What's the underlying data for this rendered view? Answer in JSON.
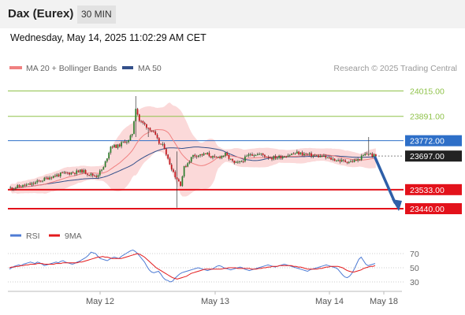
{
  "header": {
    "instrument": "Dax (Eurex)",
    "timeframe": "30 MIN",
    "datetime": "Wednesday, May 14, 2025 11:02:29 AM CET"
  },
  "legend": {
    "ma20": "MA 20 + Bollinger Bands",
    "ma50": "MA 50",
    "credit": "Research © 2025 Trading Central"
  },
  "chart_data": {
    "type": "candlestick",
    "ylim": [
      23390,
      24090
    ],
    "yticks": [
      24015,
      23891,
      23772,
      23697,
      23533,
      23440
    ],
    "levels": [
      {
        "value": 24015,
        "label": "24015.00",
        "color": "#8fc24a",
        "kind": "resistance"
      },
      {
        "value": 23891,
        "label": "23891.00",
        "color": "#8fc24a",
        "kind": "resistance"
      },
      {
        "value": 23772,
        "label": "23772.00",
        "color": "#2e6fc8",
        "kind": "pivot"
      },
      {
        "value": 23697,
        "label": "23697.00",
        "color": "#222222",
        "kind": "last price"
      },
      {
        "value": 23533,
        "label": "23533.00",
        "color": "#e3121b",
        "kind": "support"
      },
      {
        "value": 23440,
        "label": "23440.00",
        "color": "#e3121b",
        "kind": "support"
      }
    ],
    "xlabels": [
      "May 12",
      "May 13",
      "May 14",
      "May 18"
    ],
    "forecast_arrow": {
      "from": 23697,
      "to": 23440
    },
    "colors": {
      "up": "#2c7d2c",
      "down": "#c0171d",
      "ma20": "#f08080",
      "bands": "#fbd9d9",
      "ma50": "#34508a"
    },
    "rsi": {
      "legend": [
        "RSI",
        "9MA"
      ],
      "colors": {
        "rsi": "#4e7bd4",
        "ma": "#e31a1c"
      },
      "ylim": [
        20,
        80
      ],
      "levels": [
        70,
        50,
        30
      ],
      "values": [
        48,
        50,
        52,
        53,
        54,
        53,
        55,
        56,
        57,
        58,
        57,
        56,
        58,
        57,
        55,
        53,
        54,
        55,
        56,
        57,
        58,
        57,
        59,
        60,
        58,
        57,
        56,
        55,
        56,
        58,
        59,
        61,
        63,
        65,
        68,
        72,
        71,
        70,
        66,
        63,
        62,
        61,
        60,
        62,
        64,
        65,
        64,
        63,
        66,
        68,
        70,
        72,
        74,
        75,
        73,
        70,
        66,
        62,
        58,
        52,
        47,
        44,
        43,
        44,
        45,
        41,
        36,
        33,
        32,
        30,
        31,
        35,
        38,
        41,
        43,
        44,
        45,
        46,
        47,
        48,
        49,
        50,
        49,
        48,
        47,
        46,
        47,
        48,
        50,
        52,
        53,
        52,
        50,
        49,
        48,
        47,
        48,
        49,
        50,
        51,
        50,
        48,
        47,
        46,
        47,
        48,
        49,
        50,
        51,
        52,
        53,
        54,
        53,
        52,
        51,
        52,
        53,
        54,
        55,
        54,
        53,
        52,
        51,
        50,
        49,
        48,
        47,
        46,
        45,
        47,
        48,
        49,
        50,
        51,
        52,
        53,
        54,
        53,
        52,
        51,
        50,
        48,
        44,
        40,
        37,
        36,
        38,
        42,
        48,
        55,
        62,
        65,
        60,
        55,
        53,
        54,
        55,
        56
      ],
      "ma9": [
        50,
        51,
        51,
        52,
        52,
        53,
        53,
        54,
        54,
        55,
        55,
        55,
        56,
        56,
        56,
        55,
        55,
        55,
        55,
        55,
        56,
        56,
        56,
        57,
        57,
        57,
        57,
        57,
        57,
        57,
        58,
        58,
        59,
        60,
        61,
        62,
        63,
        64,
        65,
        65,
        66,
        65,
        65,
        64,
        63,
        63,
        63,
        63,
        63,
        64,
        65,
        66,
        67,
        68,
        69,
        70,
        69,
        67,
        65,
        62,
        59,
        56,
        53,
        50,
        48,
        46,
        44,
        42,
        40,
        38,
        36,
        35,
        34,
        35,
        36,
        37,
        38,
        40,
        42,
        43,
        44,
        45,
        46,
        47,
        48,
        48,
        48,
        48,
        48,
        48,
        48,
        48,
        49,
        49,
        50,
        50,
        50,
        50,
        49,
        49,
        49,
        49,
        49,
        49,
        48,
        48,
        48,
        49,
        49,
        50,
        50,
        51,
        51,
        52,
        52,
        52,
        53,
        53,
        53,
        53,
        53,
        53,
        52,
        52,
        51,
        51,
        50,
        49,
        48,
        48,
        48,
        48,
        48,
        49,
        49,
        50,
        51,
        51,
        52,
        52,
        52,
        52,
        51,
        50,
        48,
        46,
        45,
        44,
        44,
        45,
        46,
        47,
        49,
        50,
        51,
        52,
        52,
        53
      ]
    }
  }
}
